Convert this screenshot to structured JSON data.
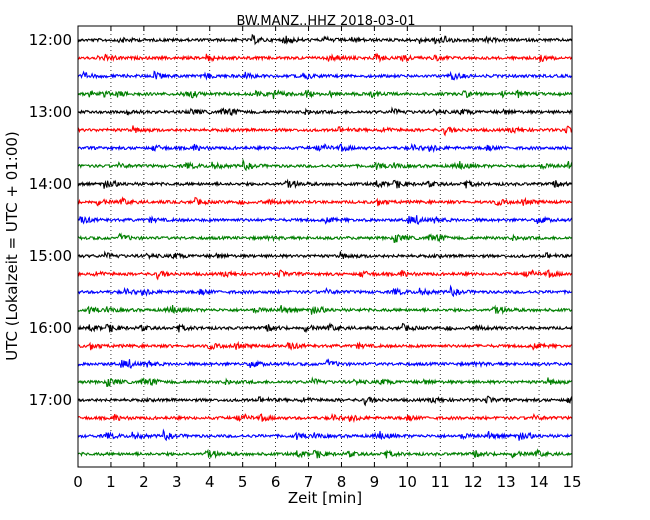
{
  "chart_data": {
    "type": "line",
    "title": "BW.MANZ..HHZ 2018-03-01",
    "xlabel": "Zeit  [min]",
    "ylabel": "UTC (Lokalzeit = UTC + 01:00)",
    "xlim": [
      0,
      15
    ],
    "x_ticks": [
      0,
      1,
      2,
      3,
      4,
      5,
      6,
      7,
      8,
      9,
      10,
      11,
      12,
      13,
      14,
      15
    ],
    "x_tick_labels": [
      "0",
      "1",
      "2",
      "3",
      "4",
      "5",
      "6",
      "7",
      "8",
      "9",
      "10",
      "11",
      "12",
      "13",
      "14",
      "15"
    ],
    "y_tick_labels": [
      "12:00",
      "13:00",
      "14:00",
      "15:00",
      "16:00",
      "17:00"
    ],
    "grid": "vertical dotted at each minute",
    "trace_colors": [
      "#000000",
      "#ff0000",
      "#0000ff",
      "#007f00"
    ],
    "trace_count": 24,
    "trace_start_times": [
      "12:00",
      "12:15",
      "12:30",
      "12:45",
      "13:00",
      "13:15",
      "13:30",
      "13:45",
      "14:00",
      "14:15",
      "14:30",
      "14:45",
      "15:00",
      "15:15",
      "15:30",
      "15:45",
      "16:00",
      "16:15",
      "16:30",
      "16:45",
      "17:00",
      "17:15",
      "17:30",
      "17:45"
    ],
    "trace_minutes": 15
  }
}
